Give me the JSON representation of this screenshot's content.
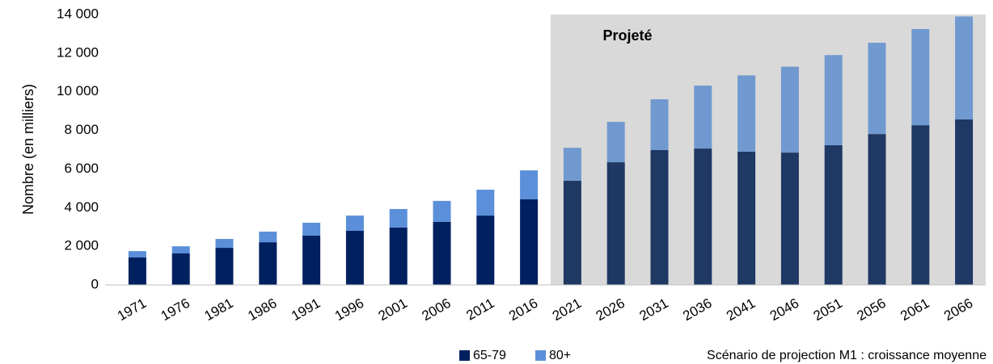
{
  "chart_data": {
    "type": "stacked_bar",
    "categories": [
      "1971",
      "1976",
      "1981",
      "1986",
      "1991",
      "1996",
      "2001",
      "2006",
      "2011",
      "2016",
      "2021",
      "2026",
      "2031",
      "2036",
      "2041",
      "2046",
      "2051",
      "2056",
      "2061",
      "2066"
    ],
    "series": [
      {
        "name": "65-79",
        "color": "#002060",
        "projected_color": "#1f3864",
        "values": [
          1420,
          1630,
          1920,
          2210,
          2550,
          2800,
          2970,
          3260,
          3590,
          4430,
          5390,
          6350,
          6980,
          7060,
          6900,
          6850,
          7230,
          7810,
          8270,
          8570
        ]
      },
      {
        "name": "80+",
        "color": "#5b8fd9",
        "projected_color": "#7099cf",
        "values": [
          330,
          370,
          460,
          550,
          670,
          790,
          960,
          1090,
          1340,
          1500,
          1710,
          2090,
          2630,
          3260,
          3950,
          4450,
          4670,
          4730,
          4980,
          5330
        ]
      }
    ],
    "ylim": [
      0,
      14000
    ],
    "yticks": [
      0,
      {
        "value": 2000,
        "label": "2 000"
      },
      {
        "value": 4000,
        "label": "4 000"
      },
      {
        "value": 6000,
        "label": "6 000"
      },
      {
        "value": 8000,
        "label": "8 000"
      },
      {
        "value": 10000,
        "label": "10 000"
      },
      {
        "value": 12000,
        "label": "12 000"
      },
      {
        "value": 14000,
        "label": "14 000"
      }
    ],
    "y_axis_label": "Nombre (en milliers)",
    "projection": {
      "label": "Projeté",
      "start_index": 10,
      "color": "#d9d9d9"
    },
    "annotation": "Scénario de projection M1 : croissance moyenne",
    "grid": false,
    "legend": "bottom"
  }
}
